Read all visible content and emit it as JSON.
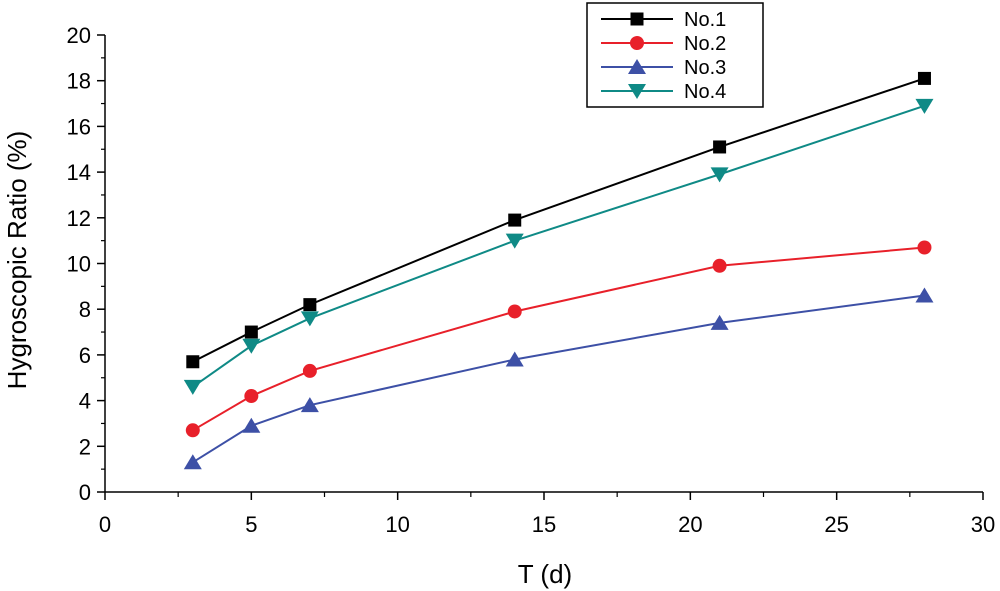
{
  "chart_data": {
    "type": "line",
    "xlabel": "T (d)",
    "ylabel": "Hygroscopic  Ratio (%)",
    "xlim": [
      0,
      30
    ],
    "ylim": [
      0,
      20
    ],
    "xticks": [
      0,
      5,
      10,
      15,
      20,
      25,
      30
    ],
    "yticks": [
      0,
      2,
      4,
      6,
      8,
      10,
      12,
      14,
      16,
      18,
      20
    ],
    "x": [
      3,
      5,
      7,
      14,
      21,
      28
    ],
    "legend_position": "top-right",
    "grid": false,
    "series": [
      {
        "name": "No.1",
        "marker": "square",
        "color": "#000000",
        "values": [
          5.7,
          7.0,
          8.2,
          11.9,
          15.1,
          18.1
        ]
      },
      {
        "name": "No.2",
        "marker": "circle",
        "color": "#e8202a",
        "values": [
          2.7,
          4.2,
          5.3,
          7.9,
          9.9,
          10.7
        ]
      },
      {
        "name": "No.3",
        "marker": "triangle-up",
        "color": "#3d50a6",
        "values": [
          1.3,
          2.9,
          3.8,
          5.8,
          7.4,
          8.6
        ]
      },
      {
        "name": "No.4",
        "marker": "triangle-down",
        "color": "#0f8a86",
        "values": [
          4.6,
          6.4,
          7.6,
          11.0,
          13.9,
          16.9
        ]
      }
    ]
  }
}
